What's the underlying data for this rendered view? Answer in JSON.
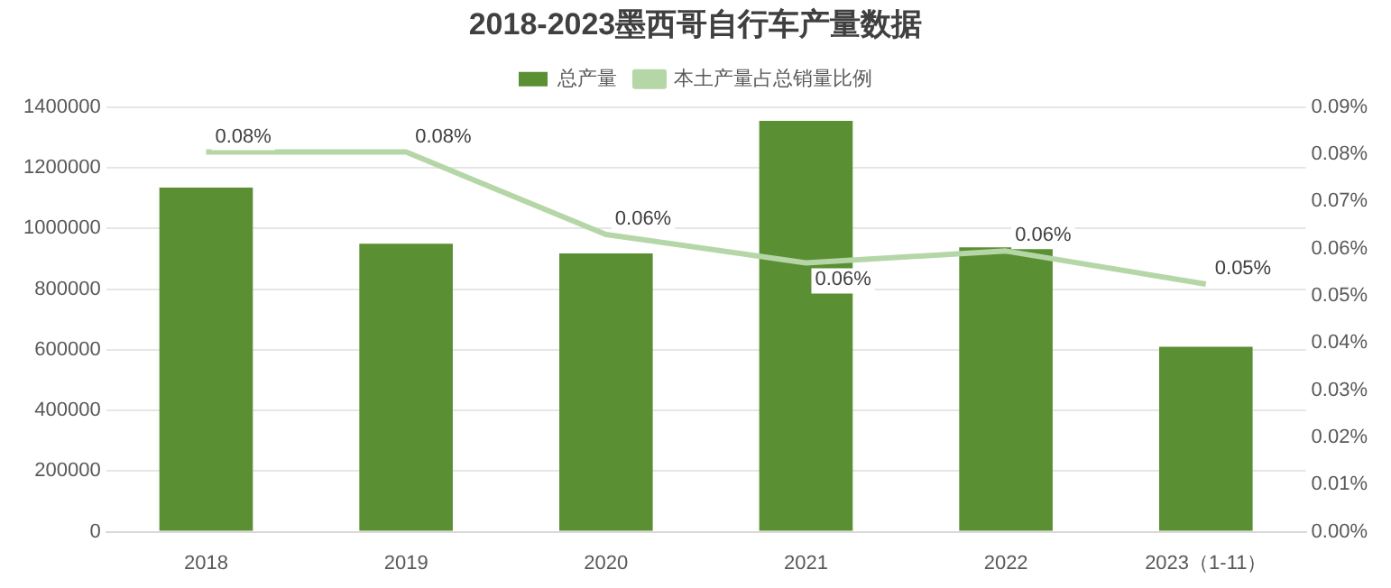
{
  "chart_data": {
    "type": "bar",
    "title": "2018-2023墨西哥自行车产量数据",
    "categories": [
      "2018",
      "2019",
      "2020",
      "2021",
      "2022",
      "2023（1-11）"
    ],
    "series": [
      {
        "name": "总产量",
        "color": "#5b8f33",
        "values": [
          1135000,
          950000,
          918000,
          1355000,
          938000,
          610000
        ]
      },
      {
        "name": "本土产量占总销量比例",
        "type": "line",
        "axis": "y2",
        "color": "#b5d6a7",
        "values": [
          0.0805,
          0.0805,
          0.063,
          0.057,
          0.0595,
          0.0525
        ],
        "value_labels": [
          "0.08%",
          "0.08%",
          "0.06%",
          "0.06%",
          "0.06%",
          "0.05%"
        ]
      }
    ],
    "ylim": [
      0,
      1400000
    ],
    "yticks": [
      0,
      200000,
      400000,
      600000,
      800000,
      1000000,
      1200000,
      1400000
    ],
    "y2lim": [
      0,
      0.09
    ],
    "y2ticks": [
      {
        "value": 0,
        "label": "0.00%"
      },
      {
        "value": 0.01,
        "label": "0.01%"
      },
      {
        "value": 0.02,
        "label": "0.02%"
      },
      {
        "value": 0.03,
        "label": "0.03%"
      },
      {
        "value": 0.04,
        "label": "0.04%"
      },
      {
        "value": 0.05,
        "label": "0.05%"
      },
      {
        "value": 0.06,
        "label": "0.06%"
      },
      {
        "value": 0.07,
        "label": "0.07%"
      },
      {
        "value": 0.08,
        "label": "0.08%"
      },
      {
        "value": 0.09,
        "label": "0.09%"
      }
    ],
    "grid": "y",
    "legend": "top",
    "marker": "none"
  }
}
